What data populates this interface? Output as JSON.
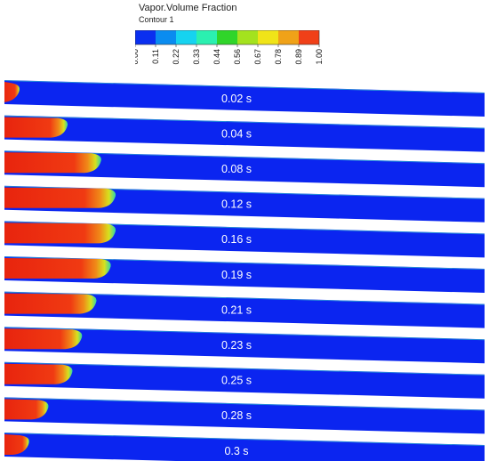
{
  "legend": {
    "title": "Vapor.Volume Fraction",
    "subtitle": "Contour 1",
    "ticks": [
      "0.00",
      "0.11",
      "0.22",
      "0.33",
      "0.44",
      "0.56",
      "0.67",
      "0.78",
      "0.89",
      "1.00"
    ],
    "colors": [
      "#0a2ff0",
      "#0a8cf0",
      "#16d3f0",
      "#2bf0b0",
      "#30d52a",
      "#a4e21e",
      "#f0e418",
      "#f0a218",
      "#f04018"
    ]
  },
  "snapshots": [
    {
      "time": "0.02 s",
      "vapor_extent": 0.03
    },
    {
      "time": "0.04 s",
      "vapor_extent": 0.13
    },
    {
      "time": "0.08  s",
      "vapor_extent": 0.2
    },
    {
      "time": "0.12 s",
      "vapor_extent": 0.23
    },
    {
      "time": "0.16 s",
      "vapor_extent": 0.23
    },
    {
      "time": "0.19 s",
      "vapor_extent": 0.22
    },
    {
      "time": "0.21 s",
      "vapor_extent": 0.19
    },
    {
      "time": "0.23 s",
      "vapor_extent": 0.16
    },
    {
      "time": "0.25 s",
      "vapor_extent": 0.14
    },
    {
      "time": "0.28 s",
      "vapor_extent": 0.09
    },
    {
      "time": "0.3 s",
      "vapor_extent": 0.05
    }
  ]
}
